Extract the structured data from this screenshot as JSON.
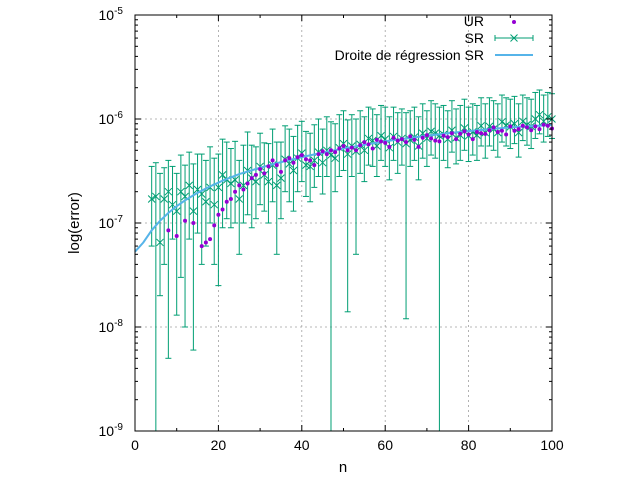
{
  "chart_data": {
    "type": "scatter",
    "xlabel": "n",
    "ylabel": "log(error)",
    "xlim": [
      0,
      100
    ],
    "ylim": [
      1e-09,
      1e-05
    ],
    "yscale": "log",
    "grid": true,
    "legend_position": "top-right",
    "x_ticks": [
      "0",
      "20",
      "40",
      "60",
      "80",
      "100"
    ],
    "y_tick_values": [
      1e-09,
      1e-08,
      1e-07,
      1e-06,
      1e-05
    ],
    "y_tick_exponents": [
      "-9",
      "-8",
      "-7",
      "-6",
      "-5"
    ],
    "y_tick_base": "10",
    "colors": {
      "UR": "#9400d3",
      "SR": "#009e73",
      "regression": "#56b4e9"
    },
    "series": [
      {
        "name": "UR",
        "marker": "dot",
        "x": [
          8,
          10,
          12,
          14,
          16,
          17,
          18,
          19,
          20,
          21,
          22,
          23,
          24,
          25,
          26,
          27,
          28,
          29,
          30,
          31,
          32,
          33,
          34,
          35,
          36,
          37,
          38,
          39,
          40,
          41,
          42,
          43,
          44,
          45,
          46,
          47,
          48,
          49,
          50,
          51,
          52,
          53,
          54,
          55,
          56,
          57,
          58,
          59,
          60,
          61,
          62,
          63,
          64,
          65,
          66,
          67,
          68,
          69,
          70,
          71,
          72,
          73,
          74,
          75,
          76,
          77,
          78,
          79,
          80,
          81,
          82,
          83,
          84,
          85,
          86,
          87,
          88,
          89,
          90,
          91,
          92,
          93,
          94,
          95,
          96,
          97,
          98,
          99,
          100
        ],
        "y": [
          8.5e-08,
          7.5e-08,
          1.05e-07,
          1e-07,
          6e-08,
          6.5e-08,
          7e-08,
          9.5e-08,
          1.2e-07,
          1.35e-07,
          1.6e-07,
          1.7e-07,
          2e-07,
          2.3e-07,
          2.1e-07,
          2.4e-07,
          2.7e-07,
          2.9e-07,
          3.3e-07,
          3e-07,
          3.5e-07,
          4e-07,
          3.6e-07,
          3.1e-07,
          4e-07,
          4.2e-07,
          3.8e-07,
          4.3e-07,
          4.5e-07,
          4.1e-07,
          4e-07,
          3.6e-07,
          4.6e-07,
          4.9e-07,
          4.6e-07,
          5e-07,
          4.8e-07,
          5.2e-07,
          5.5e-07,
          5e-07,
          5.3e-07,
          5e-07,
          5.6e-07,
          6e-07,
          5.7e-07,
          5.2e-07,
          6.3e-07,
          6.1e-07,
          5.9e-07,
          5.4e-07,
          6.6e-07,
          6.2e-07,
          6.4e-07,
          6e-07,
          6.8e-07,
          6.3e-07,
          5.4e-07,
          6.6e-07,
          7e-07,
          6.5e-07,
          6.2e-07,
          6.1e-07,
          6.9e-07,
          6.7e-07,
          7.3e-07,
          6.4e-07,
          7.2e-07,
          7.6e-07,
          7.1e-07,
          6.4e-07,
          7.5e-07,
          7.3e-07,
          7.2e-07,
          7.8e-07,
          8.3e-07,
          7.5e-07,
          7.7e-07,
          7.1e-07,
          8.5e-07,
          7.7e-07,
          8e-07,
          8.6e-07,
          8.3e-07,
          7.8e-07,
          8.5e-07,
          8e-07,
          8.8e-07,
          8.6e-07,
          8.1e-07
        ]
      },
      {
        "name": "SR",
        "marker": "cross-errorbar",
        "x": [
          4,
          5,
          6,
          7,
          8,
          9,
          10,
          11,
          12,
          13,
          14,
          15,
          16,
          17,
          18,
          19,
          20,
          21,
          22,
          23,
          24,
          25,
          26,
          27,
          28,
          29,
          30,
          31,
          32,
          33,
          34,
          35,
          36,
          37,
          38,
          39,
          40,
          41,
          42,
          43,
          44,
          45,
          46,
          47,
          48,
          49,
          50,
          51,
          52,
          53,
          54,
          55,
          56,
          57,
          58,
          59,
          60,
          61,
          62,
          63,
          64,
          65,
          66,
          67,
          68,
          69,
          70,
          71,
          72,
          73,
          74,
          75,
          76,
          77,
          78,
          79,
          80,
          81,
          82,
          83,
          84,
          85,
          86,
          87,
          88,
          89,
          90,
          91,
          92,
          93,
          94,
          95,
          96,
          97,
          98,
          99,
          100
        ],
        "y": [
          1.7e-07,
          1.8e-07,
          6.5e-08,
          1.7e-07,
          2e-07,
          1.5e-07,
          1.3e-07,
          2e-07,
          1.8e-07,
          2.3e-07,
          1.3e-07,
          2.1e-07,
          1.9e-07,
          1.6e-07,
          2.2e-07,
          1.5e-07,
          2.2e-07,
          2.9e-07,
          2.6e-07,
          2.4e-07,
          2.6e-07,
          1.7e-07,
          2.3e-07,
          3.2e-07,
          2.7e-07,
          2.5e-07,
          3.5e-07,
          2.9e-07,
          2.5e-07,
          3.6e-07,
          2.3e-07,
          2.7e-07,
          4.1e-07,
          3.7e-07,
          3.2e-07,
          4.2e-07,
          4.7e-07,
          3.6e-07,
          3.5e-07,
          4e-07,
          4.8e-07,
          3.8e-07,
          5e-07,
          4.5e-07,
          4.2e-07,
          5.3e-07,
          5.8e-07,
          4.6e-07,
          5.5e-07,
          4.9e-07,
          5.7e-07,
          5e-07,
          6.5e-07,
          6.2e-07,
          5.5e-07,
          6.9e-07,
          6.4e-07,
          5.3e-07,
          6.8e-07,
          6e-07,
          6.5e-07,
          5.8e-07,
          6.3e-07,
          6.7e-07,
          5.5e-07,
          7.3e-07,
          6.5e-07,
          7.6e-07,
          7.3e-07,
          6.9e-07,
          7.1e-07,
          6.4e-07,
          7.8e-07,
          6.6e-07,
          7e-07,
          8.2e-07,
          6.9e-07,
          7.5e-07,
          7e-07,
          8.6e-07,
          7.4e-07,
          8.5e-07,
          8e-07,
          7.4e-07,
          9.4e-07,
          8.7e-07,
          8.4e-07,
          9e-07,
          7.4e-07,
          9.5e-07,
          8.8e-07,
          8.5e-07,
          1e-06,
          1.1e-06,
          9.5e-07,
          1.05e-06,
          1e-06
        ],
        "y_low": [
          6e-08,
          1e-09,
          2e-08,
          4e-08,
          5e-09,
          7e-08,
          1.3e-08,
          3e-08,
          1e-08,
          7e-08,
          6e-09,
          8e-08,
          4e-08,
          6e-08,
          1e-07,
          4e-08,
          2.5e-08,
          9e-08,
          1.1e-07,
          9e-08,
          1e-07,
          5e-08,
          1e-07,
          1.2e-07,
          9e-08,
          1.1e-07,
          1.5e-07,
          1.3e-07,
          1e-07,
          1.6e-07,
          5e-08,
          1.1e-07,
          2e-07,
          1.6e-07,
          1.3e-07,
          2e-07,
          2.5e-07,
          1.8e-07,
          1.6e-07,
          2.2e-07,
          2.8e-07,
          1.9e-07,
          2.8e-07,
          1e-09,
          2e-07,
          2.8e-07,
          3.2e-07,
          1.4e-08,
          2.8e-07,
          5e-08,
          3e-07,
          2.5e-07,
          3.6e-07,
          3.5e-07,
          2.8e-07,
          4e-07,
          3.5e-07,
          2.6e-07,
          4e-07,
          3e-07,
          3.6e-07,
          1.2e-08,
          3.5e-07,
          4e-07,
          2.6e-07,
          4.2e-07,
          3.5e-07,
          4.5e-07,
          4.2e-07,
          1e-09,
          4e-07,
          3.4e-07,
          4.8e-07,
          3.7e-07,
          4e-07,
          5e-07,
          3.9e-07,
          4.5e-07,
          4e-07,
          5.5e-07,
          4.2e-07,
          5.5e-07,
          5e-07,
          4.3e-07,
          6e-07,
          5.5e-07,
          5.2e-07,
          5.8e-07,
          4.3e-07,
          6.2e-07,
          5.6e-07,
          5.2e-07,
          6.5e-07,
          7.2e-07,
          6e-07,
          6.8e-07,
          6.5e-07
        ],
        "y_high": [
          3.5e-07,
          3.8e-07,
          3e-07,
          3.4e-07,
          4e-07,
          3.5e-07,
          3e-07,
          4.5e-07,
          3.6e-07,
          4.8e-07,
          3.7e-07,
          4.6e-07,
          4.6e-07,
          4e-07,
          5.4e-07,
          4.2e-07,
          4.6e-07,
          6.4e-07,
          6e-07,
          5.2e-07,
          6.1e-07,
          4e-07,
          5.6e-07,
          7.5e-07,
          5.6e-07,
          5.4e-07,
          7.3e-07,
          5.9e-07,
          5.8e-07,
          8e-07,
          6e-07,
          6e-07,
          8.6e-07,
          8e-07,
          6.8e-07,
          8.7e-07,
          9.5e-07,
          7.6e-07,
          7.3e-07,
          8.8e-07,
          1e-06,
          8e-07,
          1.05e-06,
          9.4e-07,
          9e-07,
          1.1e-06,
          1.2e-06,
          9.8e-07,
          1.1e-06,
          1e-06,
          1.2e-06,
          1.05e-06,
          1.3e-06,
          1.25e-06,
          1.1e-06,
          1.35e-06,
          1.3e-06,
          1.05e-06,
          1.3e-06,
          1.15e-06,
          1.25e-06,
          1.15e-06,
          1.2e-06,
          1.3e-06,
          1.05e-06,
          1.4e-06,
          1.2e-06,
          1.5e-06,
          1.4e-06,
          1.3e-06,
          1.35e-06,
          1.2e-06,
          1.5e-06,
          1.25e-06,
          1.35e-06,
          1.55e-06,
          1.3e-06,
          1.4e-06,
          1.35e-06,
          1.6e-06,
          1.4e-06,
          1.6e-06,
          1.5e-06,
          1.4e-06,
          1.7e-06,
          1.6e-06,
          1.55e-06,
          1.65e-06,
          1.4e-06,
          1.7e-06,
          1.6e-06,
          1.55e-06,
          1.8e-06,
          1.9e-06,
          1.7e-06,
          1.8e-06,
          1.75e-06
        ]
      },
      {
        "name": "Droite de régression SR",
        "marker": "line",
        "x": [
          0,
          2,
          4,
          6,
          8,
          10,
          12,
          15,
          18,
          21,
          25,
          30,
          35,
          40,
          45,
          50,
          55,
          60,
          65,
          70,
          75,
          80,
          85,
          90,
          95,
          100
        ],
        "y": [
          5.3e-08,
          6.5e-08,
          8.5e-08,
          1.05e-07,
          1.25e-07,
          1.45e-07,
          1.65e-07,
          1.95e-07,
          2.25e-07,
          2.55e-07,
          2.95e-07,
          3.4e-07,
          3.85e-07,
          4.3e-07,
          4.75e-07,
          5.2e-07,
          5.65e-07,
          6.1e-07,
          6.5e-07,
          6.9e-07,
          7.3e-07,
          7.65e-07,
          8e-07,
          8.3e-07,
          8.55e-07,
          8.75e-07
        ]
      }
    ]
  }
}
